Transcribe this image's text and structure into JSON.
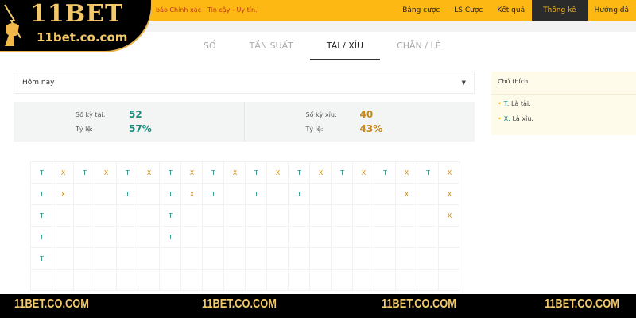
{
  "brand": {
    "logo_text": "11BET",
    "logo_domain": "11bet.co.com",
    "accent": "#fdb813"
  },
  "marquee": "báo Chính xác - Tin cậy - Uy tín.",
  "nav": [
    {
      "label": "Bảng cược"
    },
    {
      "label": "LS Cược"
    },
    {
      "label": "Kết quả"
    },
    {
      "label": "Thống kê",
      "active": true
    },
    {
      "label": "Hướng dẫ"
    }
  ],
  "tabs": [
    {
      "label": "SỐ"
    },
    {
      "label": "TẦN SUẤT"
    },
    {
      "label": "TÀI / XỈU",
      "active": true
    },
    {
      "label": "CHẴN / LẺ"
    }
  ],
  "filter": {
    "value": "Hôm nay"
  },
  "stats": {
    "tai_label": "Số kỳ tài:",
    "tai_count": "52",
    "tai_ratio_label": "Tỷ lệ:",
    "tai_ratio": "57%",
    "xiu_label": "Số kỳ xỉu:",
    "xiu_count": "40",
    "xiu_ratio_label": "Tỷ lệ:",
    "xiu_ratio": "43%"
  },
  "legend": {
    "title": "Chú thích",
    "items": [
      {
        "key": "T:",
        "text": "Là tài."
      },
      {
        "key": "X:",
        "text": "Là xỉu."
      }
    ]
  },
  "grid": {
    "rows": 6,
    "columns": [
      "TTTTT",
      "XX",
      "T",
      "X",
      "TT",
      "X",
      "TTTT",
      "XX",
      "TT",
      "X",
      "TT",
      "X",
      "TT",
      "X",
      "T",
      "X",
      "T",
      "XX",
      "T",
      "XXX"
    ],
    "colors": {
      "T": "#1a8a7a",
      "X": "#c68a1c"
    }
  },
  "footer": {
    "watermark": "11BET.CO.COM"
  }
}
